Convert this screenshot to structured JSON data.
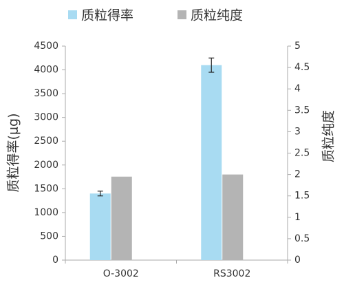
{
  "chart_data": {
    "type": "bar",
    "categories": [
      "O-3002",
      "RS3002"
    ],
    "series": [
      {
        "name": "质粒得率",
        "color": "#a8dbf2",
        "values": [
          1400,
          4100
        ],
        "errors": [
          50,
          150
        ]
      },
      {
        "name": "质粒纯度",
        "color": "#b4b4b4",
        "values": [
          1.95,
          2.0
        ],
        "axis": "y2"
      }
    ],
    "y_label": "质粒得率(μg)",
    "y2_label": "质粒纯度",
    "ylim": [
      0,
      4500
    ],
    "yticks": [
      0,
      500,
      1000,
      1500,
      2000,
      2500,
      3000,
      3500,
      4000,
      4500
    ],
    "y2lim": [
      0,
      5
    ],
    "y2ticks": [
      0,
      0.5,
      1,
      1.5,
      2,
      2.5,
      3,
      3.5,
      4,
      4.5,
      5
    ],
    "grid": false,
    "legend": "top"
  }
}
